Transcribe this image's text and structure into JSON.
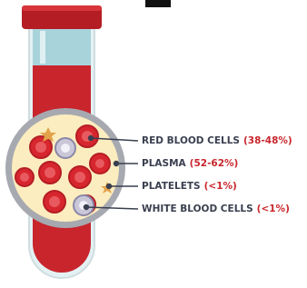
{
  "labels": [
    {
      "name": "RED BLOOD CELLS",
      "range": "(38-48%)"
    },
    {
      "name": "PLASMA",
      "range": "(52-62%)"
    },
    {
      "name": "PLATELETS",
      "range": "(<1%)"
    },
    {
      "name": "WHITE BLOOD CELLS",
      "range": "(<1%)"
    }
  ]
}
